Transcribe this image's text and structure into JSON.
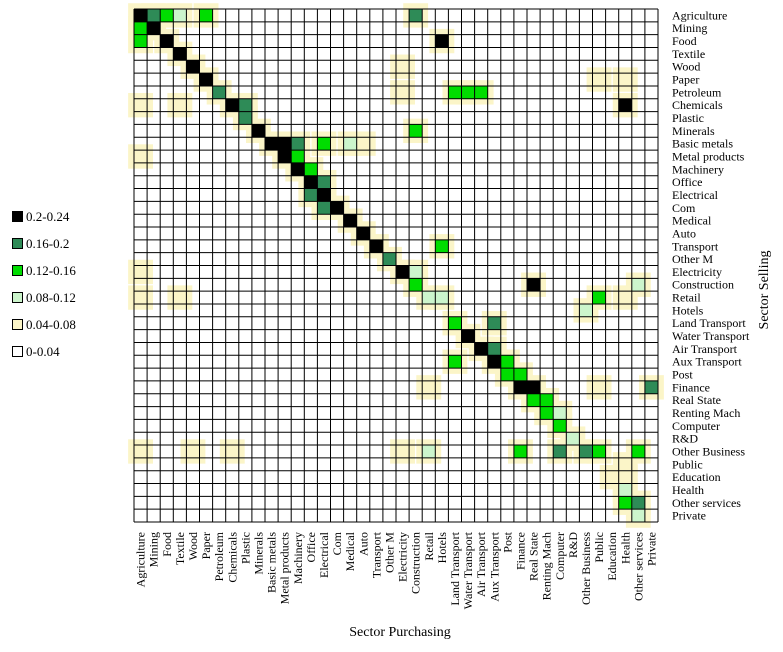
{
  "chart_data": {
    "type": "heatmap",
    "xlabel": "Sector Purchasing",
    "ylabel": "Sector Selling",
    "sectors": [
      "Agriculture",
      "Mining",
      "Food",
      "Textile",
      "Wood",
      "Paper",
      "Petroleum",
      "Chemicals",
      "Plastic",
      "Minerals",
      "Basic metals",
      "Metal products",
      "Machinery",
      "Office",
      "Electrical",
      "Com",
      "Medical",
      "Auto",
      "Transport",
      "Other M",
      "Electricity",
      "Construction",
      "Retail",
      "Hotels",
      "Land Transport",
      "Water Transport",
      "Air Transport",
      "Aux Transport",
      "Post",
      "Finance",
      "Real State",
      "Renting Mach",
      "Computer",
      "R&D",
      "Other Business",
      "Public",
      "Education",
      "Health",
      "Other services",
      "Private"
    ],
    "legend": [
      {
        "label": "0.2-0.24",
        "color": "#000000"
      },
      {
        "label": "0.16-0.2",
        "color": "#2e8b57"
      },
      {
        "label": "0.12-0.16",
        "color": "#00dd00"
      },
      {
        "label": "0.08-0.12",
        "color": "#ccf5cc"
      },
      {
        "label": "0.04-0.08",
        "color": "#fbf5c8"
      },
      {
        "label": "0-0.04",
        "color": "#ffffff"
      }
    ],
    "hotspots": [
      {
        "seller": "Agriculture",
        "buyer": "Agriculture",
        "value": 0.22
      },
      {
        "seller": "Agriculture",
        "buyer": "Mining",
        "value": 0.18
      },
      {
        "seller": "Agriculture",
        "buyer": "Food",
        "value": 0.12
      },
      {
        "seller": "Agriculture",
        "buyer": "Textile",
        "value": 0.1
      },
      {
        "seller": "Agriculture",
        "buyer": "Paper",
        "value": 0.14
      },
      {
        "seller": "Agriculture",
        "buyer": "Construction",
        "value": 0.18
      },
      {
        "seller": "Mining",
        "buyer": "Mining",
        "value": 0.2
      },
      {
        "seller": "Mining",
        "buyer": "Agriculture",
        "value": 0.14
      },
      {
        "seller": "Food",
        "buyer": "Food",
        "value": 0.22
      },
      {
        "seller": "Food",
        "buyer": "Agriculture",
        "value": 0.14
      },
      {
        "seller": "Food",
        "buyer": "Hotels",
        "value": 0.22
      },
      {
        "seller": "Textile",
        "buyer": "Textile",
        "value": 0.22
      },
      {
        "seller": "Wood",
        "buyer": "Wood",
        "value": 0.22
      },
      {
        "seller": "Wood",
        "buyer": "Electricity",
        "value": 0.06
      },
      {
        "seller": "Paper",
        "buyer": "Paper",
        "value": 0.22
      },
      {
        "seller": "Paper",
        "buyer": "Health",
        "value": 0.06
      },
      {
        "seller": "Paper",
        "buyer": "Public",
        "value": 0.05
      },
      {
        "seller": "Petroleum",
        "buyer": "Petroleum",
        "value": 0.16
      },
      {
        "seller": "Petroleum",
        "buyer": "Land Transport",
        "value": 0.14
      },
      {
        "seller": "Petroleum",
        "buyer": "Water Transport",
        "value": 0.13
      },
      {
        "seller": "Petroleum",
        "buyer": "Air Transport",
        "value": 0.12
      },
      {
        "seller": "Petroleum",
        "buyer": "Electricity",
        "value": 0.06
      },
      {
        "seller": "Chemicals",
        "buyer": "Chemicals",
        "value": 0.22
      },
      {
        "seller": "Chemicals",
        "buyer": "Plastic",
        "value": 0.16
      },
      {
        "seller": "Chemicals",
        "buyer": "Agriculture",
        "value": 0.06
      },
      {
        "seller": "Chemicals",
        "buyer": "Textile",
        "value": 0.05
      },
      {
        "seller": "Chemicals",
        "buyer": "Health",
        "value": 0.2
      },
      {
        "seller": "Plastic",
        "buyer": "Plastic",
        "value": 0.18
      },
      {
        "seller": "Minerals",
        "buyer": "Minerals",
        "value": 0.2
      },
      {
        "seller": "Minerals",
        "buyer": "Construction",
        "value": 0.12
      },
      {
        "seller": "Basic metals",
        "buyer": "Basic metals",
        "value": 0.22
      },
      {
        "seller": "Basic metals",
        "buyer": "Metal products",
        "value": 0.22
      },
      {
        "seller": "Basic metals",
        "buyer": "Machinery",
        "value": 0.18
      },
      {
        "seller": "Basic metals",
        "buyer": "Electrical",
        "value": 0.14
      },
      {
        "seller": "Basic metals",
        "buyer": "Medical",
        "value": 0.08
      },
      {
        "seller": "Basic metals",
        "buyer": "Auto",
        "value": 0.06
      },
      {
        "seller": "Metal products",
        "buyer": "Metal products",
        "value": 0.22
      },
      {
        "seller": "Metal products",
        "buyer": "Machinery",
        "value": 0.14
      },
      {
        "seller": "Metal products",
        "buyer": "Agriculture",
        "value": 0.06
      },
      {
        "seller": "Machinery",
        "buyer": "Machinery",
        "value": 0.2
      },
      {
        "seller": "Machinery",
        "buyer": "Office",
        "value": 0.14
      },
      {
        "seller": "Office",
        "buyer": "Office",
        "value": 0.22
      },
      {
        "seller": "Office",
        "buyer": "Electrical",
        "value": 0.16
      },
      {
        "seller": "Electrical",
        "buyer": "Electrical",
        "value": 0.22
      },
      {
        "seller": "Electrical",
        "buyer": "Office",
        "value": 0.16
      },
      {
        "seller": "Com",
        "buyer": "Com",
        "value": 0.22
      },
      {
        "seller": "Com",
        "buyer": "Electrical",
        "value": 0.16
      },
      {
        "seller": "Medical",
        "buyer": "Medical",
        "value": 0.2
      },
      {
        "seller": "Auto",
        "buyer": "Auto",
        "value": 0.22
      },
      {
        "seller": "Transport",
        "buyer": "Transport",
        "value": 0.2
      },
      {
        "seller": "Transport",
        "buyer": "Hotels",
        "value": 0.14
      },
      {
        "seller": "Other M",
        "buyer": "Other M",
        "value": 0.16
      },
      {
        "seller": "Electricity",
        "buyer": "Electricity",
        "value": 0.22
      },
      {
        "seller": "Electricity",
        "buyer": "Construction",
        "value": 0.1
      },
      {
        "seller": "Electricity",
        "buyer": "Agriculture",
        "value": 0.06
      },
      {
        "seller": "Construction",
        "buyer": "Construction",
        "value": 0.14
      },
      {
        "seller": "Construction",
        "buyer": "Real State",
        "value": 0.22
      },
      {
        "seller": "Construction",
        "buyer": "Other services",
        "value": 0.1
      },
      {
        "seller": "Retail",
        "buyer": "Agriculture",
        "value": 0.06
      },
      {
        "seller": "Retail",
        "buyer": "Textile",
        "value": 0.05
      },
      {
        "seller": "Retail",
        "buyer": "Hotels",
        "value": 0.1
      },
      {
        "seller": "Retail",
        "buyer": "Retail",
        "value": 0.08
      },
      {
        "seller": "Retail",
        "buyer": "Public",
        "value": 0.12
      },
      {
        "seller": "Retail",
        "buyer": "Health",
        "value": 0.06
      },
      {
        "seller": "Hotels",
        "buyer": "Other Business",
        "value": 0.1
      },
      {
        "seller": "Land Transport",
        "buyer": "Land Transport",
        "value": 0.14
      },
      {
        "seller": "Land Transport",
        "buyer": "Aux Transport",
        "value": 0.18
      },
      {
        "seller": "Water Transport",
        "buyer": "Water Transport",
        "value": 0.2
      },
      {
        "seller": "Air Transport",
        "buyer": "Air Transport",
        "value": 0.2
      },
      {
        "seller": "Air Transport",
        "buyer": "Aux Transport",
        "value": 0.16
      },
      {
        "seller": "Aux Transport",
        "buyer": "Aux Transport",
        "value": 0.22
      },
      {
        "seller": "Aux Transport",
        "buyer": "Land Transport",
        "value": 0.14
      },
      {
        "seller": "Aux Transport",
        "buyer": "Post",
        "value": 0.12
      },
      {
        "seller": "Post",
        "buyer": "Post",
        "value": 0.14
      },
      {
        "seller": "Post",
        "buyer": "Finance",
        "value": 0.12
      },
      {
        "seller": "Finance",
        "buyer": "Finance",
        "value": 0.22
      },
      {
        "seller": "Finance",
        "buyer": "Real State",
        "value": 0.22
      },
      {
        "seller": "Finance",
        "buyer": "Retail",
        "value": 0.06
      },
      {
        "seller": "Finance",
        "buyer": "Private",
        "value": 0.18
      },
      {
        "seller": "Finance",
        "buyer": "Public",
        "value": 0.06
      },
      {
        "seller": "Real State",
        "buyer": "Real State",
        "value": 0.14
      },
      {
        "seller": "Real State",
        "buyer": "Renting Mach",
        "value": 0.12
      },
      {
        "seller": "Renting Mach",
        "buyer": "Renting Mach",
        "value": 0.14
      },
      {
        "seller": "Renting Mach",
        "buyer": "Computer",
        "value": 0.1
      },
      {
        "seller": "Computer",
        "buyer": "Computer",
        "value": 0.14
      },
      {
        "seller": "R&D",
        "buyer": "R&D",
        "value": 0.1
      },
      {
        "seller": "Other Business",
        "buyer": "Other Business",
        "value": 0.18
      },
      {
        "seller": "Other Business",
        "buyer": "Finance",
        "value": 0.14
      },
      {
        "seller": "Other Business",
        "buyer": "Computer",
        "value": 0.16
      },
      {
        "seller": "Other Business",
        "buyer": "Public",
        "value": 0.12
      },
      {
        "seller": "Other Business",
        "buyer": "Retail",
        "value": 0.1
      },
      {
        "seller": "Other Business",
        "buyer": "Other services",
        "value": 0.12
      },
      {
        "seller": "Other Business",
        "buyer": "Agriculture",
        "value": 0.06
      },
      {
        "seller": "Other Business",
        "buyer": "Wood",
        "value": 0.06
      },
      {
        "seller": "Other Business",
        "buyer": "Chemicals",
        "value": 0.06
      },
      {
        "seller": "Other Business",
        "buyer": "Electricity",
        "value": 0.06
      },
      {
        "seller": "Public",
        "buyer": "Health",
        "value": 0.06
      },
      {
        "seller": "Education",
        "buyer": "Education",
        "value": 0.06
      },
      {
        "seller": "Education",
        "buyer": "Health",
        "value": 0.06
      },
      {
        "seller": "Health",
        "buyer": "Health",
        "value": 0.1
      },
      {
        "seller": "Other services",
        "buyer": "Other services",
        "value": 0.18
      },
      {
        "seller": "Other services",
        "buyer": "Health",
        "value": 0.12
      },
      {
        "seller": "Private",
        "buyer": "Other services",
        "value": 0.08
      }
    ],
    "grid": true,
    "legend_position": "left"
  }
}
